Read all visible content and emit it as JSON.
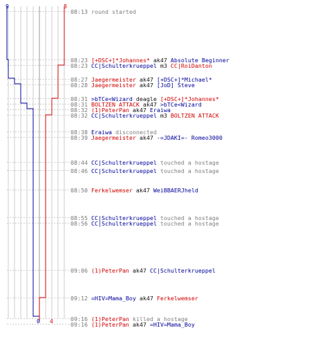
{
  "colors": {
    "red_team": "#d20000",
    "blue_team": "#000099",
    "action": "#111111",
    "muted": "#808080",
    "time": "#777777",
    "guide_major": "#999999",
    "guide_minor": "#cccccc"
  },
  "team_counts": {
    "blue_start": "9",
    "red_start": "8",
    "blue_end": "0",
    "red_end": "4"
  },
  "events": [
    {
      "time": "08:13",
      "parts": [
        {
          "t": "round started",
          "c": "gray"
        }
      ]
    },
    {
      "time": "08:23",
      "parts": [
        {
          "t": "[+DSC+]*Johannes*",
          "c": "red"
        },
        {
          "t": " ak47 ",
          "c": "blk"
        },
        {
          "t": "Absolute Beginner",
          "c": "blue"
        }
      ]
    },
    {
      "time": "08:23",
      "parts": [
        {
          "t": "CC|Schulterkrueppel",
          "c": "blue"
        },
        {
          "t": " m3 ",
          "c": "blk"
        },
        {
          "t": "CC|RoiDanton",
          "c": "red"
        }
      ]
    },
    {
      "time": "08:27",
      "parts": [
        {
          "t": "Jaegermeister",
          "c": "red"
        },
        {
          "t": " ak47 ",
          "c": "blk"
        },
        {
          "t": "[+DSC+]*Michael*",
          "c": "blue"
        }
      ]
    },
    {
      "time": "08:28",
      "parts": [
        {
          "t": "Jaegermeister",
          "c": "red"
        },
        {
          "t": " ak47 ",
          "c": "blk"
        },
        {
          "t": "[JoD] Steve",
          "c": "blue"
        }
      ]
    },
    {
      "time": "08:31",
      "parts": [
        {
          "t": ">bTCe<Wizard",
          "c": "blue"
        },
        {
          "t": " deagle ",
          "c": "blk"
        },
        {
          "t": "[+DSC+]*Johannes*",
          "c": "red"
        }
      ]
    },
    {
      "time": "08:31",
      "parts": [
        {
          "t": "BOLTZEN ATTACK",
          "c": "red"
        },
        {
          "t": " ak47 ",
          "c": "blk"
        },
        {
          "t": ">bTCe<Wizard",
          "c": "blue"
        }
      ]
    },
    {
      "time": "08:32",
      "parts": [
        {
          "t": "(1)PeterPan",
          "c": "red"
        },
        {
          "t": " ak47 ",
          "c": "blk"
        },
        {
          "t": "Eraiwa",
          "c": "blue"
        }
      ]
    },
    {
      "time": "08:32",
      "parts": [
        {
          "t": "CC|Schulterkrueppel",
          "c": "blue"
        },
        {
          "t": " m3 ",
          "c": "blk"
        },
        {
          "t": "BOLTZEN ATTACK",
          "c": "red"
        }
      ]
    },
    {
      "time": "08:38",
      "parts": [
        {
          "t": "Eraiwa",
          "c": "blue"
        },
        {
          "t": " disconnected",
          "c": "gray"
        }
      ]
    },
    {
      "time": "08:39",
      "parts": [
        {
          "t": "Jaegermeister",
          "c": "red"
        },
        {
          "t": " ak47 ",
          "c": "blk"
        },
        {
          "t": "-=JDAKI=- Romeo3000",
          "c": "blue"
        }
      ]
    },
    {
      "time": "08:44",
      "parts": [
        {
          "t": "CC|Schulterkrueppel",
          "c": "blue"
        },
        {
          "t": " touched a hostage",
          "c": "gray"
        }
      ]
    },
    {
      "time": "08:46",
      "parts": [
        {
          "t": "CC|Schulterkrueppel",
          "c": "blue"
        },
        {
          "t": " touched a hostage",
          "c": "gray"
        }
      ]
    },
    {
      "time": "08:50",
      "parts": [
        {
          "t": "Ferkelwemser",
          "c": "red"
        },
        {
          "t": " ak47 ",
          "c": "blk"
        },
        {
          "t": "WeiBBAERJheld",
          "c": "blue"
        }
      ]
    },
    {
      "time": "08:55",
      "parts": [
        {
          "t": "CC|Schulterkrueppel",
          "c": "blue"
        },
        {
          "t": " touched a hostage",
          "c": "gray"
        }
      ]
    },
    {
      "time": "08:56",
      "parts": [
        {
          "t": "CC|Schulterkrueppel",
          "c": "blue"
        },
        {
          "t": " touched a hostage",
          "c": "gray"
        }
      ]
    },
    {
      "time": "09:06",
      "parts": [
        {
          "t": "(1)PeterPan",
          "c": "red"
        },
        {
          "t": " ak47 ",
          "c": "blk"
        },
        {
          "t": "CC|Schulterkrueppel",
          "c": "blue"
        }
      ]
    },
    {
      "time": "09:12",
      "parts": [
        {
          "t": "=HIV=Mama_Boy",
          "c": "blue"
        },
        {
          "t": " ak47 ",
          "c": "blk"
        },
        {
          "t": "Ferkelwemser",
          "c": "red"
        }
      ]
    },
    {
      "time": "09:16",
      "parts": [
        {
          "t": "(1)PeterPan",
          "c": "red"
        },
        {
          "t": " killed a hostage",
          "c": "gray"
        }
      ]
    },
    {
      "time": "09:16",
      "parts": [
        {
          "t": "(1)PeterPan",
          "c": "red"
        },
        {
          "t": " ak47 ",
          "c": "blk"
        },
        {
          "t": "=HIV=Mama_Boy",
          "c": "blue"
        }
      ]
    }
  ]
}
